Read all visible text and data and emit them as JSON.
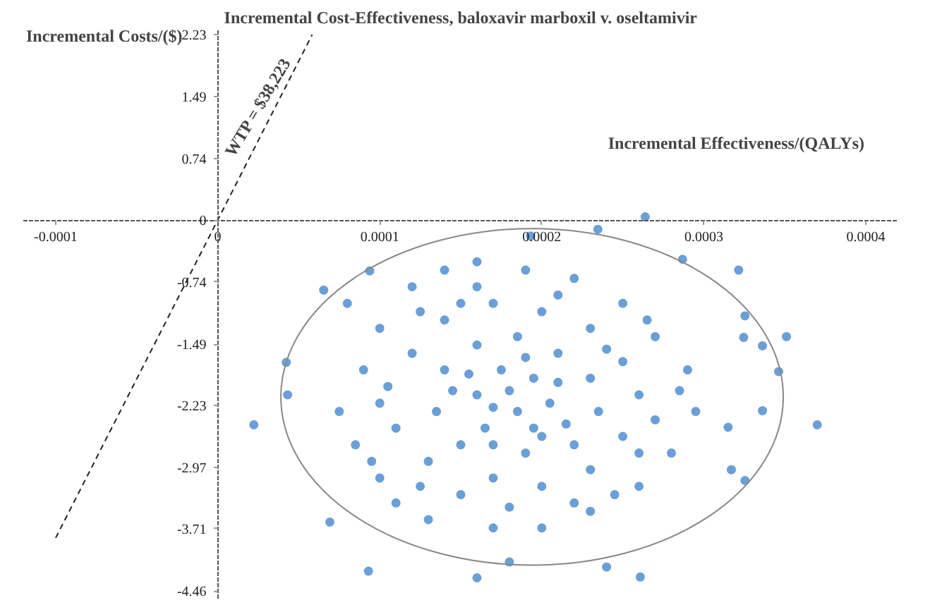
{
  "chart_data": {
    "type": "scatter",
    "title": "Incremental Cost-Effectiveness, baloxavir marboxil v. oseltamivir",
    "xlabel": "Incremental Effectiveness/(QALYs)",
    "ylabel": "Incremental Costs/($)",
    "xlim": [
      -0.00012,
      0.00042
    ],
    "ylim": [
      -4.55,
      2.3
    ],
    "xticks": [
      -0.0001,
      0,
      0.0001,
      0.0002,
      0.0003,
      0.0004
    ],
    "yticks": [
      -4.46,
      -3.71,
      -2.97,
      -2.23,
      -1.49,
      -0.74,
      0,
      0.74,
      1.49,
      2.23
    ],
    "marker": "circle",
    "annotations": [
      {
        "text": "WTP = $38,223",
        "x": 3e-05,
        "y": 1.3
      }
    ],
    "series": [
      {
        "color": "#6a9fd8",
        "x": [
          0.00037,
          0.000351,
          2.23e-05,
          4.23e-05,
          4.31e-05,
          9.3e-05,
          6.92e-05,
          6.54e-05,
          9.38e-05,
          0.0002638,
          0.0002346,
          0.0001931,
          0.0003215,
          0.0002869,
          0.0002608,
          0.00016,
          0.00018,
          0.0003254,
          0.000317,
          0.00024,
          0.0003462,
          0.0003362,
          0.0003246,
          0.0003254,
          0.0003362,
          0.000315,
          8e-05,
          0.0001,
          9e-05,
          7.5e-05,
          8.5e-05,
          0.0001,
          0.00011,
          0.00013,
          0.00012,
          0.00014,
          0.00016,
          0.00019,
          0.00022,
          0.00025,
          0.00027,
          0.00029,
          0.000295,
          0.00028,
          0.00026,
          0.00023,
          0.0002,
          0.00017,
          0.00015,
          0.00013,
          0.00011,
          0.000105,
          0.00012,
          0.00014,
          0.00017,
          0.0002,
          0.00023,
          0.00025,
          0.00026,
          0.00025,
          0.00023,
          0.0002,
          0.00017,
          0.00015,
          0.000135,
          0.00014,
          0.00016,
          0.000185,
          0.00021,
          0.00023,
          0.000235,
          0.00022,
          0.00019,
          0.000165,
          0.00016,
          0.000175,
          0.000195,
          0.000205,
          0.000185,
          0.00018,
          0.00017,
          0.000195,
          0.000215,
          0.00021,
          0.000155,
          0.000145,
          0.00024,
          0.00027,
          0.000285,
          0.0001,
          9.5e-05,
          0.000125,
          0.00016,
          0.00021,
          0.00018,
          0.000245,
          0.000125,
          0.000265,
          0.00015,
          0.00022,
          0.00019,
          0.00017,
          0.00026,
          0.0002
        ],
        "values": [
          -2.46,
          -1.4,
          -2.46,
          -1.71,
          -2.1,
          -4.22,
          -3.63,
          -0.84,
          -0.61,
          0.04,
          -0.11,
          -0.19,
          -0.6,
          -0.47,
          -4.29,
          -4.3,
          -4.11,
          -3.13,
          -3.0,
          -4.17,
          -1.82,
          -1.51,
          -1.41,
          -1.15,
          -2.29,
          -2.49,
          -1.0,
          -1.3,
          -1.8,
          -2.3,
          -2.7,
          -3.1,
          -3.4,
          -3.6,
          -0.8,
          -0.6,
          -0.5,
          -0.6,
          -0.7,
          -1.0,
          -1.4,
          -1.8,
          -2.3,
          -2.8,
          -3.2,
          -3.5,
          -3.7,
          -3.7,
          -3.3,
          -2.9,
          -2.5,
          -2.0,
          -1.6,
          -1.2,
          -1.0,
          -1.1,
          -1.3,
          -1.7,
          -2.1,
          -2.6,
          -3.0,
          -3.2,
          -3.1,
          -2.7,
          -2.3,
          -1.8,
          -1.5,
          -1.4,
          -1.6,
          -1.9,
          -2.3,
          -2.7,
          -2.8,
          -2.5,
          -2.1,
          -1.8,
          -1.9,
          -2.2,
          -2.3,
          -2.05,
          -2.25,
          -2.5,
          -2.45,
          -1.95,
          -1.85,
          -2.05,
          -1.55,
          -2.4,
          -2.05,
          -2.2,
          -2.9,
          -3.2,
          -0.8,
          -0.9,
          -3.45,
          -3.3,
          -1.1,
          -1.2,
          -1.0,
          -3.4,
          -1.65,
          -2.7,
          -2.8,
          -2.6
        ]
      },
      {
        "type": "line",
        "color": "#222222",
        "line_style": "dashed",
        "marker": "none",
        "x": [
          -0.0001,
          5.83e-05
        ],
        "values": [
          -3.82,
          2.23
        ]
      }
    ]
  }
}
